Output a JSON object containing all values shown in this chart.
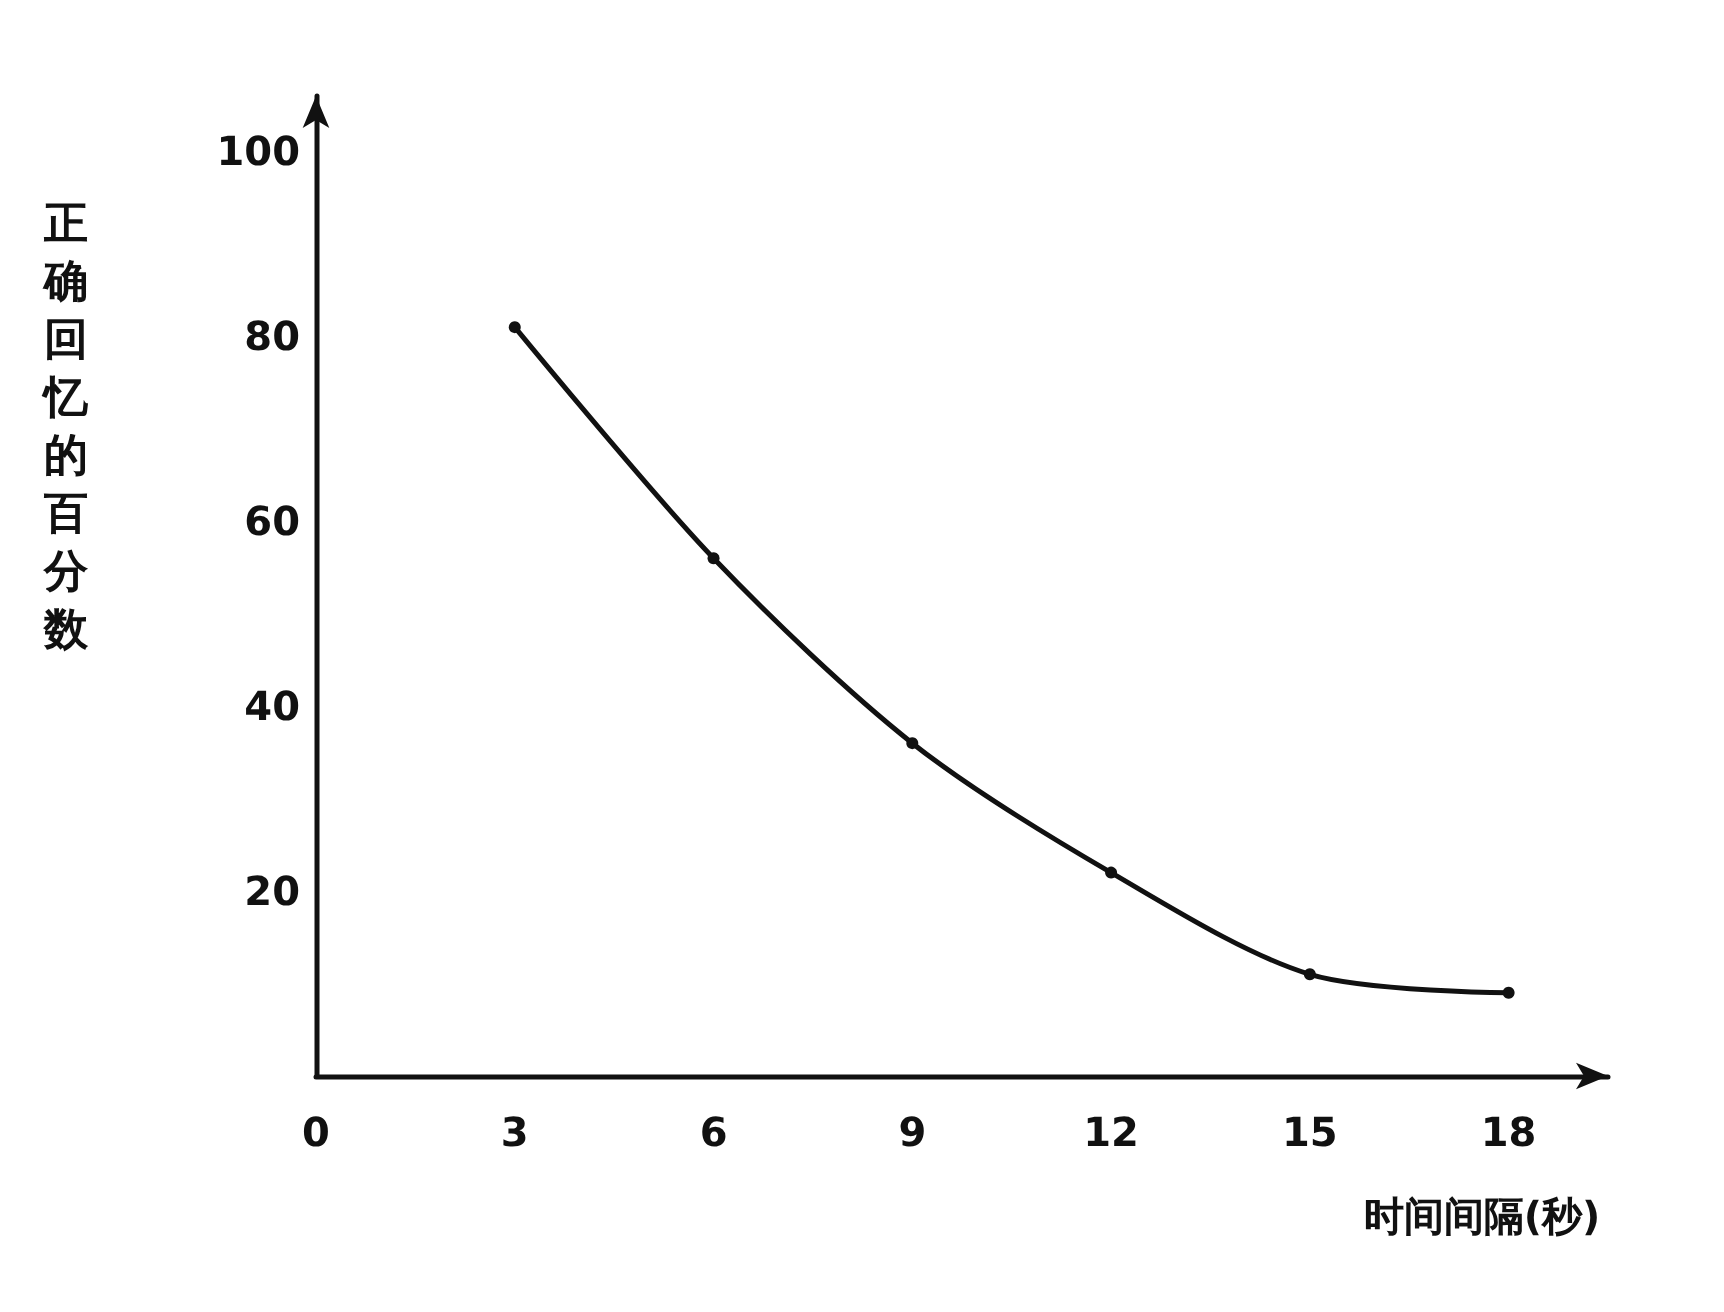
{
  "chart_data": {
    "type": "line",
    "xlabel": "时间间隔(秒)",
    "ylabel": "正确回忆的百分数",
    "x": [
      3,
      6,
      9,
      12,
      15,
      18
    ],
    "series": [
      {
        "color": "#111111",
        "values": [
          81,
          56,
          36,
          22,
          11,
          9
        ]
      }
    ],
    "xlim": [
      0,
      19.5
    ],
    "xticks": [
      0,
      3,
      6,
      9,
      12,
      15,
      18
    ],
    "ylim": [
      0,
      106
    ],
    "yticks": [
      20,
      40,
      60,
      80,
      100
    ],
    "grid": false,
    "marker": "circle",
    "line_style": "solid"
  }
}
